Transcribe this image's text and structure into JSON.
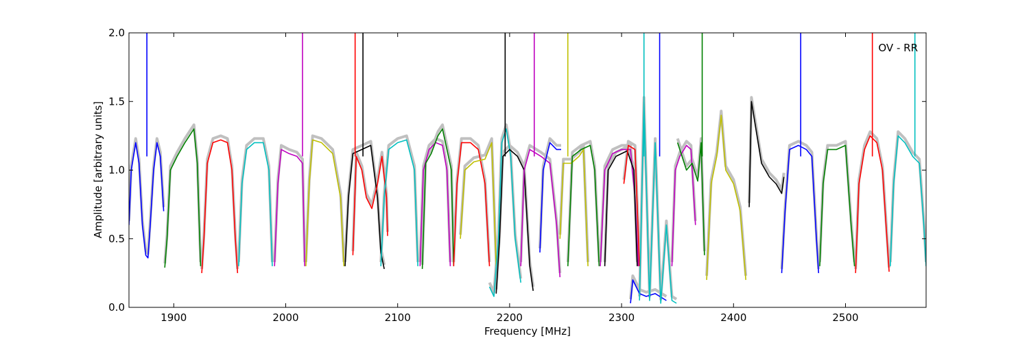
{
  "chart_data": {
    "type": "line",
    "title": "",
    "xlabel": "Frequency [MHz]",
    "ylabel": "Amplitude [arbitrary units]",
    "xlim": [
      1860,
      2572
    ],
    "ylim": [
      0.0,
      2.0
    ],
    "xticks": [
      1900,
      2000,
      2100,
      2200,
      2300,
      2400,
      2500
    ],
    "yticks": [
      0.0,
      0.5,
      1.0,
      1.5,
      2.0
    ],
    "xtick_labels": [
      "1900",
      "2000",
      "2100",
      "2200",
      "2300",
      "2400",
      "2500"
    ],
    "ytick_labels": [
      "0.0",
      "0.5",
      "1.0",
      "1.5",
      "2.0"
    ],
    "annotation": "OV - RR",
    "legend": "none",
    "grid": false,
    "background_series_color": "#c0c0c0",
    "series": [
      {
        "color": "#0000ff",
        "spike": 1876,
        "points": [
          [
            1860,
            0.6
          ],
          [
            1862,
            1.0
          ],
          [
            1866,
            1.2
          ],
          [
            1869,
            1.05
          ],
          [
            1872,
            0.6
          ],
          [
            1875,
            0.38
          ],
          [
            1877,
            0.36
          ],
          [
            1879,
            0.6
          ],
          [
            1882,
            1.0
          ],
          [
            1885,
            1.2
          ],
          [
            1888,
            1.1
          ],
          [
            1891,
            0.7
          ]
        ]
      },
      {
        "color": "#008000",
        "points": [
          [
            1892,
            0.29
          ],
          [
            1894,
            0.5
          ],
          [
            1897,
            1.0
          ],
          [
            1903,
            1.1
          ],
          [
            1910,
            1.2
          ],
          [
            1918,
            1.3
          ],
          [
            1921,
            1.05
          ],
          [
            1924,
            0.3
          ]
        ]
      },
      {
        "color": "#ff0000",
        "points": [
          [
            1925,
            0.25
          ],
          [
            1927,
            0.5
          ],
          [
            1930,
            1.05
          ],
          [
            1935,
            1.2
          ],
          [
            1942,
            1.22
          ],
          [
            1948,
            1.2
          ],
          [
            1952,
            1.0
          ],
          [
            1955,
            0.5
          ],
          [
            1957,
            0.25
          ]
        ]
      },
      {
        "color": "#00bfbf",
        "points": [
          [
            1958,
            0.3
          ],
          [
            1961,
            0.9
          ],
          [
            1965,
            1.15
          ],
          [
            1972,
            1.2
          ],
          [
            1980,
            1.2
          ],
          [
            1985,
            1.0
          ],
          [
            1988,
            0.3
          ]
        ]
      },
      {
        "color": "#bf00bf",
        "spike": 2015,
        "points": [
          [
            1990,
            0.3
          ],
          [
            1993,
            0.9
          ],
          [
            1996,
            1.15
          ],
          [
            2003,
            1.12
          ],
          [
            2010,
            1.1
          ],
          [
            2015,
            1.05
          ],
          [
            2017,
            0.3
          ]
        ]
      },
      {
        "color": "#bfbf00",
        "points": [
          [
            2018,
            0.3
          ],
          [
            2021,
            0.9
          ],
          [
            2024,
            1.22
          ],
          [
            2032,
            1.2
          ],
          [
            2042,
            1.12
          ],
          [
            2049,
            0.8
          ],
          [
            2052,
            0.3
          ]
        ]
      },
      {
        "color": "#000000",
        "spike": 2069,
        "points": [
          [
            2053,
            0.3
          ],
          [
            2056,
            0.8
          ],
          [
            2060,
            1.12
          ],
          [
            2068,
            1.15
          ],
          [
            2076,
            1.18
          ],
          [
            2082,
            0.8
          ],
          [
            2085,
            0.4
          ],
          [
            2088,
            0.28
          ]
        ]
      },
      {
        "color": "#ff0000",
        "spike": 2062,
        "points": [
          [
            2060,
            0.38
          ],
          [
            2063,
            1.1
          ],
          [
            2068,
            1.0
          ],
          [
            2072,
            0.8
          ],
          [
            2077,
            0.72
          ],
          [
            2082,
            0.9
          ],
          [
            2086,
            1.1
          ],
          [
            2090,
            0.8
          ],
          [
            2091,
            0.52
          ]
        ]
      },
      {
        "color": "#00bfbf",
        "points": [
          [
            2085,
            0.3
          ],
          [
            2088,
            0.8
          ],
          [
            2092,
            1.15
          ],
          [
            2100,
            1.2
          ],
          [
            2108,
            1.22
          ],
          [
            2115,
            1.0
          ],
          [
            2118,
            0.3
          ]
        ]
      },
      {
        "color": "#bf00bf",
        "points": [
          [
            2120,
            0.3
          ],
          [
            2123,
            1.0
          ],
          [
            2128,
            1.15
          ],
          [
            2134,
            1.2
          ],
          [
            2140,
            1.18
          ],
          [
            2144,
            1.0
          ],
          [
            2147,
            0.3
          ]
        ]
      },
      {
        "color": "#008000",
        "points": [
          [
            2122,
            0.28
          ],
          [
            2125,
            1.05
          ],
          [
            2130,
            1.12
          ],
          [
            2136,
            1.25
          ],
          [
            2140,
            1.3
          ],
          [
            2148,
            1.0
          ],
          [
            2150,
            0.3
          ]
        ]
      },
      {
        "color": "#ff0000",
        "points": [
          [
            2150,
            0.3
          ],
          [
            2153,
            0.9
          ],
          [
            2157,
            1.2
          ],
          [
            2165,
            1.2
          ],
          [
            2172,
            1.15
          ],
          [
            2178,
            0.9
          ],
          [
            2182,
            0.3
          ]
        ]
      },
      {
        "color": "#bfbf00",
        "points": [
          [
            2156,
            0.5
          ],
          [
            2160,
            1.0
          ],
          [
            2168,
            1.06
          ],
          [
            2178,
            1.08
          ],
          [
            2184,
            1.2
          ],
          [
            2188,
            0.3
          ]
        ]
      },
      {
        "color": "#00bfbf",
        "points": [
          [
            2182,
            0.15
          ],
          [
            2186,
            0.08
          ],
          [
            2190,
            0.5
          ],
          [
            2193,
            1.2
          ],
          [
            2197,
            1.3
          ],
          [
            2201,
            1.1
          ],
          [
            2205,
            0.5
          ],
          [
            2210,
            0.18
          ]
        ]
      },
      {
        "color": "#000000",
        "spike": 2196,
        "points": [
          [
            2188,
            0.1
          ],
          [
            2191,
            0.5
          ],
          [
            2194,
            1.1
          ],
          [
            2200,
            1.15
          ],
          [
            2207,
            1.1
          ],
          [
            2213,
            1.0
          ],
          [
            2218,
            0.3
          ],
          [
            2221,
            0.12
          ]
        ]
      },
      {
        "color": "#bf00bf",
        "spike": 2222,
        "points": [
          [
            2210,
            0.3
          ],
          [
            2213,
            1.0
          ],
          [
            2218,
            1.15
          ],
          [
            2228,
            1.1
          ],
          [
            2236,
            1.05
          ],
          [
            2242,
            0.6
          ],
          [
            2245,
            0.22
          ]
        ]
      },
      {
        "color": "#0000ff",
        "points": [
          [
            2227,
            0.4
          ],
          [
            2230,
            1.0
          ],
          [
            2236,
            1.2
          ],
          [
            2242,
            1.15
          ],
          [
            2246,
            1.15
          ]
        ]
      },
      {
        "color": "#bfbf00",
        "spike": 2252,
        "points": [
          [
            2245,
            0.5
          ],
          [
            2248,
            1.05
          ],
          [
            2255,
            1.05
          ],
          [
            2262,
            1.1
          ],
          [
            2266,
            1.15
          ],
          [
            2270,
            0.3
          ]
        ]
      },
      {
        "color": "#008000",
        "points": [
          [
            2252,
            0.3
          ],
          [
            2256,
            1.1
          ],
          [
            2264,
            1.15
          ],
          [
            2272,
            1.18
          ],
          [
            2276,
            1.0
          ],
          [
            2280,
            0.3
          ]
        ]
      },
      {
        "color": "#bf00bf",
        "points": [
          [
            2281,
            0.3
          ],
          [
            2285,
            1.0
          ],
          [
            2292,
            1.12
          ],
          [
            2300,
            1.15
          ],
          [
            2308,
            1.15
          ],
          [
            2312,
            0.8
          ],
          [
            2315,
            0.3
          ]
        ]
      },
      {
        "color": "#000000",
        "points": [
          [
            2285,
            0.3
          ],
          [
            2288,
            1.0
          ],
          [
            2295,
            1.1
          ],
          [
            2305,
            1.14
          ],
          [
            2311,
            1.0
          ],
          [
            2314,
            0.3
          ]
        ]
      },
      {
        "color": "#ff0000",
        "points": [
          [
            2302,
            0.9
          ],
          [
            2306,
            1.18
          ],
          [
            2312,
            1.15
          ],
          [
            2316,
            0.3
          ]
        ]
      },
      {
        "color": "#0000ff",
        "spike": 2334,
        "points": [
          [
            2308,
            0.03
          ],
          [
            2310,
            0.2
          ],
          [
            2316,
            0.1
          ],
          [
            2322,
            0.08
          ],
          [
            2330,
            0.1
          ],
          [
            2340,
            0.05
          ]
        ]
      },
      {
        "color": "#00bfbf",
        "spike": 2320,
        "points": [
          [
            2316,
            0.05
          ],
          [
            2320,
            1.5
          ],
          [
            2325,
            0.05
          ],
          [
            2330,
            1.2
          ],
          [
            2335,
            0.03
          ],
          [
            2340,
            0.6
          ],
          [
            2345,
            0.05
          ],
          [
            2349,
            0.03
          ]
        ]
      },
      {
        "color": "#bf00bf",
        "points": [
          [
            2345,
            0.3
          ],
          [
            2348,
            1.0
          ],
          [
            2352,
            1.1
          ],
          [
            2358,
            1.18
          ],
          [
            2362,
            1.15
          ],
          [
            2366,
            0.6
          ]
        ]
      },
      {
        "color": "#008000",
        "spike": 2372,
        "points": [
          [
            2350,
            1.2
          ],
          [
            2354,
            1.1
          ],
          [
            2358,
            1.0
          ],
          [
            2363,
            1.05
          ],
          [
            2368,
            0.92
          ],
          [
            2371,
            1.2
          ],
          [
            2374,
            0.38
          ]
        ]
      },
      {
        "color": "#bfbf00",
        "points": [
          [
            2376,
            0.2
          ],
          [
            2380,
            0.9
          ],
          [
            2385,
            1.1
          ],
          [
            2389,
            1.4
          ],
          [
            2393,
            1.0
          ],
          [
            2400,
            0.9
          ],
          [
            2406,
            0.7
          ],
          [
            2411,
            0.2
          ]
        ]
      },
      {
        "color": "#000000",
        "points": [
          [
            2414,
            0.73
          ],
          [
            2416,
            1.5
          ],
          [
            2420,
            1.3
          ],
          [
            2425,
            1.05
          ],
          [
            2432,
            0.95
          ],
          [
            2438,
            0.9
          ],
          [
            2443,
            0.83
          ],
          [
            2445,
            0.95
          ]
        ]
      },
      {
        "color": "#0000ff",
        "spike": 2460,
        "points": [
          [
            2443,
            0.25
          ],
          [
            2446,
            0.7
          ],
          [
            2450,
            1.15
          ],
          [
            2458,
            1.18
          ],
          [
            2465,
            1.15
          ],
          [
            2470,
            1.1
          ],
          [
            2474,
            0.5
          ],
          [
            2476,
            0.25
          ]
        ]
      },
      {
        "color": "#008000",
        "points": [
          [
            2477,
            0.3
          ],
          [
            2480,
            0.9
          ],
          [
            2484,
            1.15
          ],
          [
            2492,
            1.15
          ],
          [
            2500,
            1.18
          ],
          [
            2505,
            0.6
          ],
          [
            2508,
            0.3
          ]
        ]
      },
      {
        "color": "#ff0000",
        "spike": 2524,
        "points": [
          [
            2509,
            0.25
          ],
          [
            2512,
            0.9
          ],
          [
            2517,
            1.15
          ],
          [
            2522,
            1.25
          ],
          [
            2528,
            1.2
          ],
          [
            2533,
            1.0
          ],
          [
            2537,
            0.5
          ],
          [
            2539,
            0.26
          ]
        ]
      },
      {
        "color": "#00bfbf",
        "spike": 2562,
        "points": [
          [
            2540,
            0.3
          ],
          [
            2543,
            0.9
          ],
          [
            2547,
            1.25
          ],
          [
            2553,
            1.2
          ],
          [
            2560,
            1.1
          ],
          [
            2566,
            1.05
          ],
          [
            2570,
            0.6
          ],
          [
            2572,
            0.3
          ]
        ]
      }
    ]
  }
}
